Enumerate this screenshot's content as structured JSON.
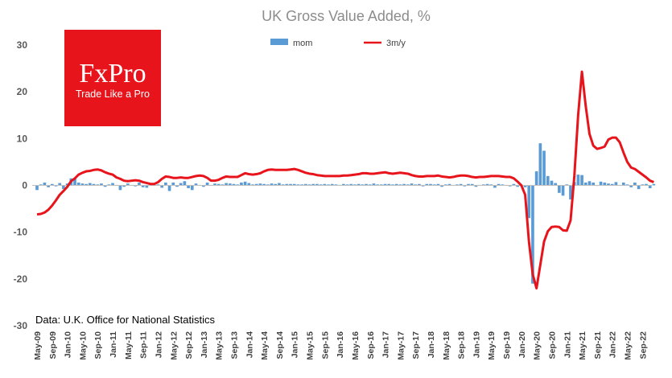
{
  "logo": {
    "brand": "FxPro",
    "tagline": "Trade Like a Pro",
    "color": "#e8141b"
  },
  "chart_data": {
    "type": "bar+line",
    "title": "UK Gross Value Added, %",
    "source_note": "Data: U.K. Office for National Statistics",
    "ylim": [
      -30,
      30
    ],
    "yticks": [
      30,
      20,
      10,
      0,
      -10,
      -20,
      -30
    ],
    "grid": false,
    "legend_position": "top-center",
    "start_month": "May-09",
    "months_count": 162,
    "x_tick_labels": [
      "May-09",
      "Sep-09",
      "Jan-10",
      "May-10",
      "Sep-10",
      "Jan-11",
      "May-11",
      "Sep-11",
      "Jan-12",
      "May-12",
      "Sep-12",
      "Jan-13",
      "May-13",
      "Sep-13",
      "Jan-14",
      "May-14",
      "Sep-14",
      "Jan-15",
      "May-15",
      "Sep-15",
      "Jan-16",
      "May-16",
      "Sep-16",
      "Jan-17",
      "May-17",
      "Sep-17",
      "Jan-18",
      "May-18",
      "Sep-18",
      "Jan-19",
      "May-19",
      "Sep-19",
      "Jan-20",
      "May-20",
      "Sep-20",
      "Jan-21",
      "May-21",
      "Sep-21",
      "Jan-22",
      "May-22",
      "Sep-22"
    ],
    "series": [
      {
        "name": "mom",
        "type": "bar",
        "color": "#5b9bd5",
        "values": [
          -1.0,
          0.2,
          0.6,
          -0.4,
          0.3,
          -0.2,
          0.5,
          -0.8,
          0.4,
          1.5,
          1.6,
          0.6,
          0.4,
          0.3,
          0.5,
          0.3,
          0.2,
          0.4,
          -0.3,
          0.2,
          0.5,
          0.1,
          -1.0,
          -0.3,
          0.4,
          0.1,
          -0.2,
          0.6,
          -0.4,
          -0.5,
          0.3,
          0.1,
          0.2,
          -0.5,
          0.6,
          -1.2,
          0.6,
          -0.3,
          0.5,
          0.9,
          -0.6,
          -1.0,
          0.4,
          0.1,
          -0.3,
          0.6,
          0.1,
          0.4,
          0.3,
          0.2,
          0.5,
          0.4,
          0.3,
          0.2,
          0.6,
          0.8,
          0.5,
          0.2,
          0.3,
          0.4,
          0.3,
          0.2,
          0.4,
          0.3,
          0.5,
          0.2,
          0.3,
          0.3,
          0.3,
          0.2,
          0.2,
          0.3,
          0.2,
          0.3,
          0.3,
          0.2,
          0.3,
          0.2,
          0.3,
          0.2,
          0.1,
          0.3,
          0.2,
          0.3,
          0.2,
          0.3,
          0.2,
          0.3,
          0.2,
          0.4,
          0.2,
          0.2,
          0.3,
          0.3,
          0.2,
          0.3,
          0.2,
          0.3,
          0.2,
          0.4,
          0.2,
          0.3,
          -0.2,
          0.3,
          0.3,
          0.2,
          0.3,
          -0.3,
          0.2,
          0.3,
          0.1,
          0.2,
          0.3,
          -0.2,
          0.3,
          0.3,
          -0.3,
          0.1,
          0.2,
          0.3,
          0.2,
          -0.5,
          0.3,
          0.2,
          0.1,
          -0.2,
          0.3,
          -0.3,
          -0.1,
          -0.4,
          -7.0,
          -21.0,
          3.0,
          9.0,
          7.4,
          2.0,
          1.0,
          0.5,
          -1.6,
          -2.2,
          0.2,
          -3.0,
          0.7,
          2.3,
          2.2,
          0.6,
          0.9,
          0.6,
          -0.1,
          0.8,
          0.6,
          0.4,
          0.3,
          0.7,
          0.1,
          0.6,
          0.2,
          -0.4,
          0.6,
          -0.8,
          0.2,
          0.3,
          -0.6,
          0.3
        ]
      },
      {
        "name": "3m/y",
        "type": "line",
        "color": "#e8141b",
        "values": [
          -6.2,
          -6.1,
          -5.8,
          -5.2,
          -4.3,
          -3.2,
          -2.0,
          -1.2,
          -0.3,
          0.9,
          1.5,
          2.3,
          2.7,
          3.0,
          3.1,
          3.3,
          3.4,
          3.2,
          2.8,
          2.5,
          2.3,
          1.7,
          1.4,
          1.0,
          0.9,
          1.0,
          1.1,
          1.0,
          0.7,
          0.5,
          0.3,
          0.3,
          0.7,
          1.4,
          1.9,
          1.8,
          1.6,
          1.6,
          1.7,
          1.6,
          1.6,
          1.8,
          2.0,
          2.1,
          2.0,
          1.6,
          1.0,
          1.0,
          1.2,
          1.6,
          1.9,
          1.8,
          1.8,
          1.8,
          2.2,
          2.6,
          2.4,
          2.3,
          2.4,
          2.6,
          3.0,
          3.3,
          3.4,
          3.3,
          3.3,
          3.3,
          3.3,
          3.4,
          3.5,
          3.3,
          3.0,
          2.7,
          2.5,
          2.4,
          2.2,
          2.1,
          2.0,
          2.0,
          2.0,
          2.0,
          2.0,
          2.1,
          2.1,
          2.2,
          2.3,
          2.4,
          2.6,
          2.6,
          2.5,
          2.5,
          2.6,
          2.7,
          2.8,
          2.6,
          2.5,
          2.6,
          2.7,
          2.6,
          2.5,
          2.2,
          2.0,
          1.9,
          1.9,
          2.0,
          2.0,
          2.0,
          2.1,
          1.9,
          1.8,
          1.7,
          1.8,
          2.0,
          2.1,
          2.1,
          2.0,
          1.8,
          1.7,
          1.8,
          1.8,
          1.9,
          2.0,
          2.0,
          2.0,
          1.9,
          1.8,
          1.8,
          1.5,
          0.8,
          0.0,
          -2.0,
          -12.0,
          -19.0,
          -22.0,
          -17.0,
          -12.0,
          -9.8,
          -8.9,
          -8.8,
          -8.9,
          -9.6,
          -9.7,
          -7.5,
          2.0,
          15.0,
          24.3,
          17.0,
          11.0,
          8.5,
          7.8,
          8.0,
          8.3,
          9.8,
          10.2,
          10.2,
          9.2,
          7.0,
          5.0,
          3.8,
          3.5,
          2.9,
          2.3,
          1.7,
          1.0,
          0.7
        ]
      }
    ]
  }
}
